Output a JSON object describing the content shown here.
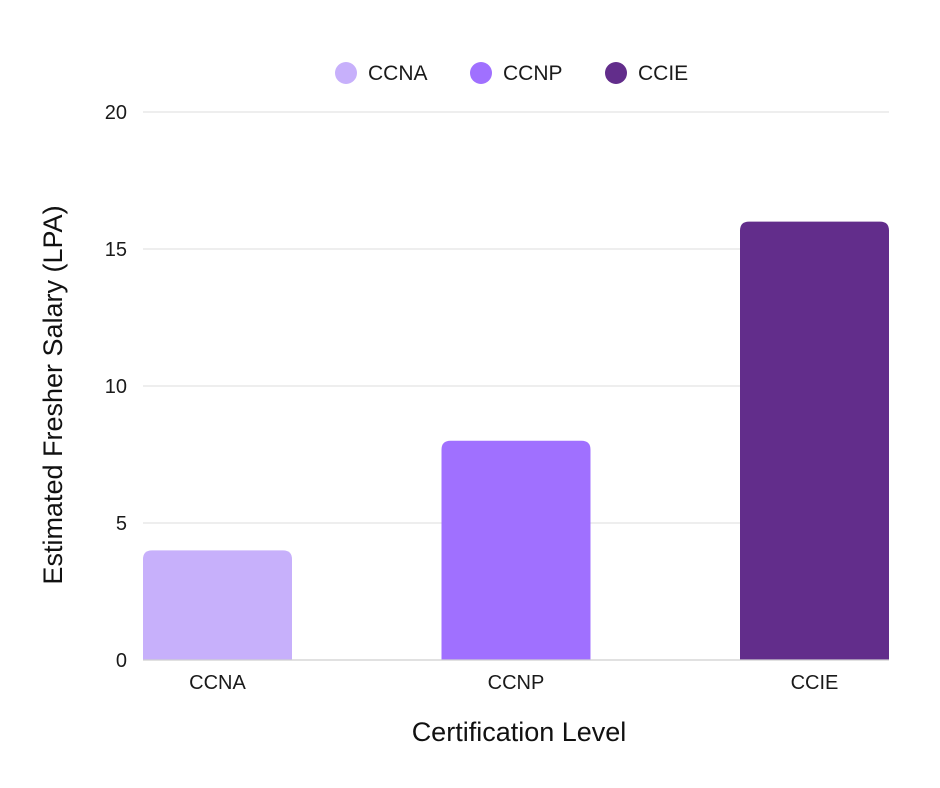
{
  "chart_data": {
    "type": "bar",
    "categories": [
      "CCNA",
      "CCNP",
      "CCIE"
    ],
    "values": [
      4,
      8,
      16
    ],
    "colors": [
      "#c7b0fb",
      "#a070ff",
      "#622d8b"
    ],
    "legend": {
      "placement": "top-center",
      "items": [
        {
          "label": "CCNA",
          "color": "#c7b0fb"
        },
        {
          "label": "CCNP",
          "color": "#a070ff"
        },
        {
          "label": "CCIE",
          "color": "#622d8b"
        }
      ]
    },
    "xlabel": "Certification Level",
    "ylabel": "Estimated Fresher Salary (LPA)",
    "ylim": [
      0,
      20
    ],
    "yticks": [
      "0",
      "5",
      "10",
      "15",
      "20"
    ],
    "grid": true
  }
}
